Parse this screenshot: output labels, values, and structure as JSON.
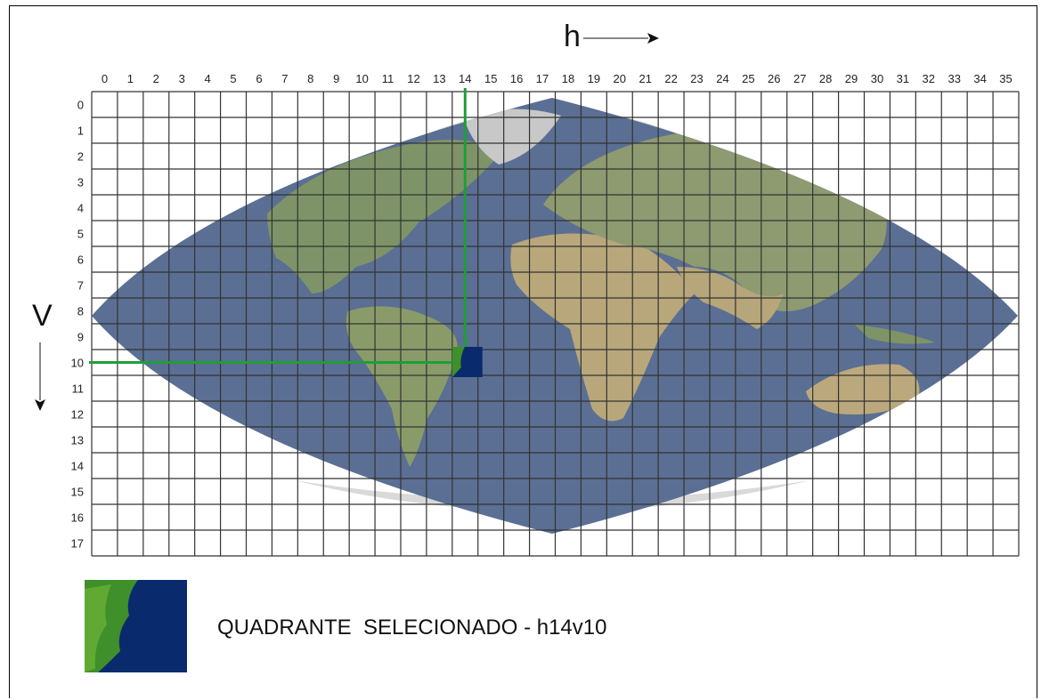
{
  "axes": {
    "h_label": "h",
    "v_label": "V",
    "h_ticks": [
      "0",
      "1",
      "2",
      "3",
      "4",
      "5",
      "6",
      "7",
      "8",
      "9",
      "10",
      "11",
      "12",
      "13",
      "14",
      "15",
      "16",
      "17",
      "18",
      "19",
      "20",
      "21",
      "22",
      "23",
      "24",
      "25",
      "26",
      "27",
      "28",
      "29",
      "30",
      "31",
      "32",
      "33",
      "34",
      "35"
    ],
    "v_ticks": [
      "0",
      "1",
      "2",
      "3",
      "4",
      "5",
      "6",
      "7",
      "8",
      "9",
      "10",
      "11",
      "12",
      "13",
      "14",
      "15",
      "16",
      "17"
    ]
  },
  "selection": {
    "h": 14,
    "v": 10
  },
  "colors": {
    "ocean": "#5a6f93",
    "highlight_line": "#1f9e3a",
    "tile_ocean": "#0a2a6e",
    "tile_land": "#3f8f2a",
    "grid": "#333333",
    "polar": "#d9d9d9"
  },
  "caption": "QUADRANTE  SELECIONADO - h14v10"
}
